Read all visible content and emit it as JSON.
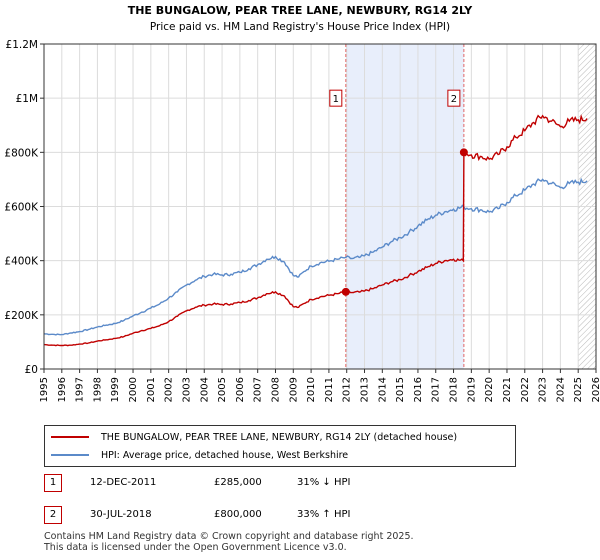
{
  "chart_data": {
    "type": "line",
    "title": "THE BUNGALOW, PEAR TREE LANE, NEWBURY, RG14 2LY",
    "subtitle": "Price paid vs. HM Land Registry's House Price Index (HPI)",
    "xlabel": "",
    "ylabel": "",
    "xlim": [
      1995,
      2026
    ],
    "ylim": [
      0,
      1200000
    ],
    "y_ticks": [
      0,
      200000,
      400000,
      600000,
      800000,
      1000000,
      1200000
    ],
    "y_tick_labels": [
      "£0",
      "£200K",
      "£400K",
      "£600K",
      "£800K",
      "£1M",
      "£1.2M"
    ],
    "x_ticks": [
      1995,
      1996,
      1997,
      1998,
      1999,
      2000,
      2001,
      2002,
      2003,
      2004,
      2005,
      2006,
      2007,
      2008,
      2009,
      2010,
      2011,
      2012,
      2013,
      2014,
      2015,
      2016,
      2017,
      2018,
      2019,
      2020,
      2021,
      2022,
      2023,
      2024,
      2025,
      2026
    ],
    "grid": true,
    "highlight_span": [
      2011.95,
      2018.58
    ],
    "hatch_from": 2025.0,
    "series": [
      {
        "name": "THE BUNGALOW, PEAR TREE LANE, NEWBURY, RG14 2LY (detached house)",
        "color": "#c00000",
        "points": [
          [
            1995.0,
            90000
          ],
          [
            1995.5,
            88000
          ],
          [
            1996.0,
            87000
          ],
          [
            1996.5,
            88000
          ],
          [
            1997.0,
            92000
          ],
          [
            1997.5,
            96000
          ],
          [
            1998.0,
            103000
          ],
          [
            1998.5,
            108000
          ],
          [
            1999.0,
            113000
          ],
          [
            1999.5,
            120000
          ],
          [
            2000.0,
            132000
          ],
          [
            2000.5,
            142000
          ],
          [
            2001.0,
            150000
          ],
          [
            2001.5,
            160000
          ],
          [
            2002.0,
            175000
          ],
          [
            2002.5,
            195000
          ],
          [
            2003.0,
            215000
          ],
          [
            2003.5,
            228000
          ],
          [
            2004.0,
            236000
          ],
          [
            2004.5,
            240000
          ],
          [
            2005.0,
            238000
          ],
          [
            2005.5,
            240000
          ],
          [
            2006.0,
            245000
          ],
          [
            2006.5,
            253000
          ],
          [
            2007.0,
            263000
          ],
          [
            2007.5,
            278000
          ],
          [
            2008.0,
            285000
          ],
          [
            2008.5,
            270000
          ],
          [
            2009.0,
            230000
          ],
          [
            2009.3,
            228000
          ],
          [
            2009.6,
            242000
          ],
          [
            2010.0,
            257000
          ],
          [
            2010.5,
            266000
          ],
          [
            2011.0,
            272000
          ],
          [
            2011.5,
            278000
          ],
          [
            2011.95,
            285000
          ],
          [
            2012.3,
            282000
          ],
          [
            2012.7,
            284000
          ],
          [
            2013.0,
            288000
          ],
          [
            2013.5,
            297000
          ],
          [
            2014.0,
            310000
          ],
          [
            2014.5,
            322000
          ],
          [
            2015.0,
            330000
          ],
          [
            2015.5,
            345000
          ],
          [
            2016.0,
            360000
          ],
          [
            2016.5,
            375000
          ],
          [
            2017.0,
            390000
          ],
          [
            2017.5,
            400000
          ],
          [
            2018.0,
            405000
          ],
          [
            2018.55,
            400000
          ],
          [
            2018.58,
            800000
          ],
          [
            2019.0,
            790000
          ],
          [
            2019.5,
            785000
          ],
          [
            2020.0,
            775000
          ],
          [
            2020.5,
            792000
          ],
          [
            2021.0,
            820000
          ],
          [
            2021.5,
            855000
          ],
          [
            2022.0,
            880000
          ],
          [
            2022.5,
            910000
          ],
          [
            2023.0,
            935000
          ],
          [
            2023.5,
            915000
          ],
          [
            2024.0,
            895000
          ],
          [
            2024.5,
            915000
          ],
          [
            2025.0,
            920000
          ],
          [
            2025.5,
            925000
          ]
        ]
      },
      {
        "name": "HPI: Average price, detached house, West Berkshire",
        "color": "#5b8ac9",
        "points": [
          [
            1995.0,
            130000
          ],
          [
            1995.5,
            128000
          ],
          [
            1996.0,
            127000
          ],
          [
            1996.5,
            133000
          ],
          [
            1997.0,
            138000
          ],
          [
            1997.5,
            146000
          ],
          [
            1998.0,
            155000
          ],
          [
            1998.5,
            162000
          ],
          [
            1999.0,
            168000
          ],
          [
            1999.5,
            180000
          ],
          [
            2000.0,
            196000
          ],
          [
            2000.5,
            210000
          ],
          [
            2001.0,
            225000
          ],
          [
            2001.5,
            240000
          ],
          [
            2002.0,
            262000
          ],
          [
            2002.5,
            285000
          ],
          [
            2003.0,
            310000
          ],
          [
            2003.5,
            328000
          ],
          [
            2004.0,
            342000
          ],
          [
            2004.5,
            350000
          ],
          [
            2005.0,
            347000
          ],
          [
            2005.5,
            350000
          ],
          [
            2006.0,
            357000
          ],
          [
            2006.5,
            370000
          ],
          [
            2007.0,
            385000
          ],
          [
            2007.5,
            405000
          ],
          [
            2008.0,
            415000
          ],
          [
            2008.5,
            395000
          ],
          [
            2009.0,
            345000
          ],
          [
            2009.3,
            340000
          ],
          [
            2009.6,
            360000
          ],
          [
            2010.0,
            380000
          ],
          [
            2010.5,
            392000
          ],
          [
            2011.0,
            398000
          ],
          [
            2011.5,
            405000
          ],
          [
            2011.95,
            412000
          ],
          [
            2012.3,
            408000
          ],
          [
            2012.7,
            412000
          ],
          [
            2013.0,
            418000
          ],
          [
            2013.5,
            432000
          ],
          [
            2014.0,
            450000
          ],
          [
            2014.5,
            470000
          ],
          [
            2015.0,
            485000
          ],
          [
            2015.5,
            505000
          ],
          [
            2016.0,
            528000
          ],
          [
            2016.5,
            550000
          ],
          [
            2017.0,
            568000
          ],
          [
            2017.5,
            580000
          ],
          [
            2018.0,
            590000
          ],
          [
            2018.58,
            598000
          ],
          [
            2019.0,
            592000
          ],
          [
            2019.5,
            588000
          ],
          [
            2020.0,
            580000
          ],
          [
            2020.5,
            592000
          ],
          [
            2021.0,
            615000
          ],
          [
            2021.5,
            640000
          ],
          [
            2022.0,
            660000
          ],
          [
            2022.5,
            683000
          ],
          [
            2023.0,
            700000
          ],
          [
            2023.5,
            685000
          ],
          [
            2024.0,
            670000
          ],
          [
            2024.5,
            685000
          ],
          [
            2025.0,
            690000
          ],
          [
            2025.5,
            695000
          ]
        ]
      }
    ],
    "markers": [
      {
        "label": "1",
        "x": 2011.95,
        "y": 285000
      },
      {
        "label": "2",
        "x": 2018.58,
        "y": 800000
      }
    ]
  },
  "legend": {
    "red_label": "THE BUNGALOW, PEAR TREE LANE, NEWBURY, RG14 2LY (detached house)",
    "blue_label": "HPI: Average price, detached house, West Berkshire"
  },
  "transactions": [
    {
      "num": "1",
      "date": "12-DEC-2011",
      "price": "£285,000",
      "hpi": "31% ↓ HPI"
    },
    {
      "num": "2",
      "date": "30-JUL-2018",
      "price": "£800,000",
      "hpi": "33% ↑ HPI"
    }
  ],
  "footer": {
    "line1": "Contains HM Land Registry data © Crown copyright and database right 2025.",
    "line2": "This data is licensed under the Open Government Licence v3.0."
  }
}
